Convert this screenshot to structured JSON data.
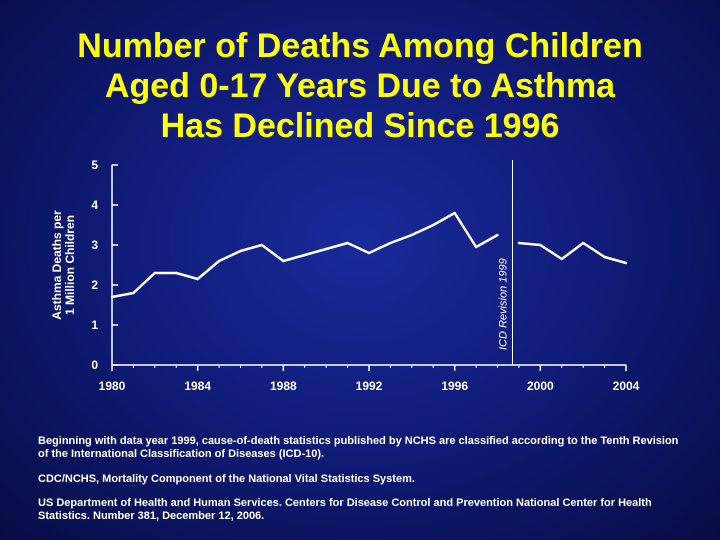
{
  "title_lines": [
    "Number of Deaths Among Children",
    "Aged 0-17 Years Due to Asthma",
    "Has Declined Since 1996"
  ],
  "colors": {
    "title": "#ffff00",
    "line": "#ffffff",
    "axis": "#ffffff",
    "text": "#ffffff"
  },
  "notes": {
    "revision": "Beginning with data year 1999, cause-of-death statistics published by NCHS are classified according to the Tenth Revision of the International Classification of Diseases (ICD-10).",
    "source1": "CDC/NCHS, Mortality Component of the National Vital Statistics System.",
    "source2": "US Department of Health and Human Services. Centers for Disease Control and Prevention National Center for Health Statistics. Number 381, December 12, 2006."
  },
  "chart_data": {
    "type": "line",
    "title": "Number of Deaths Among Children Aged 0-17 Years Due to Asthma Has Declined Since 1996",
    "ylabel_lines": [
      "Asthma Deaths per",
      "1 Million Children"
    ],
    "xlabel": "",
    "xlim": [
      1980,
      2004
    ],
    "ylim": [
      0,
      5
    ],
    "xticks": [
      1980,
      1984,
      1988,
      1992,
      1996,
      2000,
      2004
    ],
    "yticks": [
      0,
      1,
      2,
      3,
      4,
      5
    ],
    "grid": false,
    "legend": "none",
    "annotations": [
      {
        "text": "ICD Revision 1999",
        "x": 1998.7,
        "orientation": "vertical line"
      }
    ],
    "series": [
      {
        "segment": "before-1999",
        "x": [
          1980,
          1981,
          1982,
          1983,
          1984,
          1985,
          1986,
          1987,
          1988,
          1989,
          1990,
          1991,
          1992,
          1993,
          1994,
          1995,
          1996,
          1997,
          1998
        ],
        "y": [
          1.7,
          1.8,
          2.3,
          2.3,
          2.15,
          2.6,
          2.85,
          3.0,
          2.6,
          2.75,
          2.9,
          3.05,
          2.8,
          3.05,
          3.25,
          3.5,
          3.8,
          2.95,
          3.25
        ]
      },
      {
        "segment": "after-1999",
        "x": [
          1999,
          2000,
          2001,
          2002,
          2003,
          2004
        ],
        "y": [
          3.05,
          3.0,
          2.65,
          3.05,
          2.7,
          2.55
        ]
      }
    ]
  }
}
